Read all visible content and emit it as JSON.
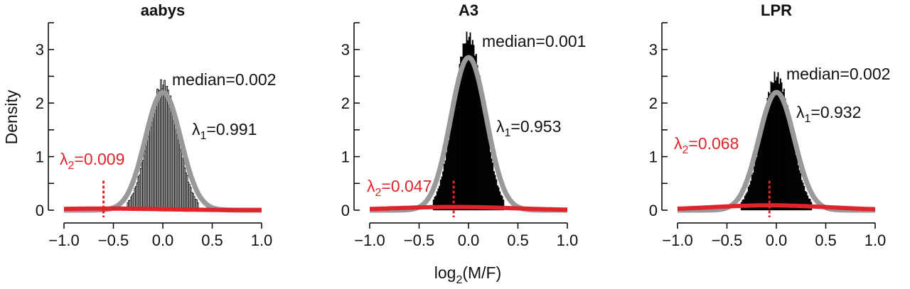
{
  "figure": {
    "ylabel": "Density",
    "xlabel_main": "log",
    "xlabel_sub": "2",
    "xlabel_tail": "(M/F)"
  },
  "colors": {
    "histogram": "#000000",
    "fit_major": "#999999",
    "fit_minor": "#e0242b",
    "text": "#111111",
    "red_text": "#e0242b"
  },
  "chart_data": [
    {
      "type": "histogram",
      "title": "aabys",
      "xlim": [
        -1.0,
        1.0
      ],
      "ylim": [
        0,
        3.5
      ],
      "xticks": [
        "−1.0",
        "−0.5",
        "0.0",
        "0.5",
        "1.0"
      ],
      "yticks": [
        "0",
        "1",
        "2",
        "3"
      ],
      "hist_style": "hatched",
      "peak_density": 2.35,
      "median_label": "median=0.002",
      "lambda1": {
        "symbol": "λ",
        "sub": "1",
        "text": "=0.991"
      },
      "lambda2": {
        "symbol": "λ",
        "sub": "2",
        "text": "=0.009"
      },
      "components": [
        {
          "name": "major",
          "weight": 0.991,
          "mean": 0.002,
          "peak": 2.2
        },
        {
          "name": "minor",
          "weight": 0.009,
          "mean": -0.6,
          "peak": 0.03,
          "marker_x": -0.6,
          "marker_top": 0.55
        }
      ]
    },
    {
      "type": "histogram",
      "title": "A3",
      "xlim": [
        -1.0,
        1.0
      ],
      "ylim": [
        0,
        3.5
      ],
      "xticks": [
        "−1.0",
        "−0.5",
        "0.0",
        "0.5",
        "1.0"
      ],
      "yticks": [
        "0",
        "1",
        "2",
        "3"
      ],
      "hist_style": "solid",
      "peak_density": 3.25,
      "median_label": "median=0.001",
      "lambda1": {
        "symbol": "λ",
        "sub": "1",
        "text": "=0.953"
      },
      "lambda2": {
        "symbol": "λ",
        "sub": "2",
        "text": "=0.047"
      },
      "components": [
        {
          "name": "major",
          "weight": 0.953,
          "mean": 0.001,
          "peak": 2.85
        },
        {
          "name": "minor",
          "weight": 0.047,
          "mean": -0.15,
          "peak": 0.06,
          "marker_x": -0.15,
          "marker_top": 0.55
        }
      ]
    },
    {
      "type": "histogram",
      "title": "LPR",
      "xlim": [
        -1.0,
        1.0
      ],
      "ylim": [
        0,
        3.5
      ],
      "xticks": [
        "−1.0",
        "−0.5",
        "0.0",
        "0.5",
        "1.0"
      ],
      "yticks": [
        "0",
        "1",
        "2",
        "3"
      ],
      "hist_style": "solid",
      "peak_density": 2.5,
      "median_label": "median=0.002",
      "lambda1": {
        "symbol": "λ",
        "sub": "1",
        "text": "=0.932"
      },
      "lambda2": {
        "symbol": "λ",
        "sub": "2",
        "text": "=0.068"
      },
      "components": [
        {
          "name": "major",
          "weight": 0.932,
          "mean": 0.002,
          "peak": 2.2
        },
        {
          "name": "minor",
          "weight": 0.068,
          "mean": -0.07,
          "peak": 0.09,
          "marker_x": -0.07,
          "marker_top": 0.55
        }
      ]
    }
  ]
}
